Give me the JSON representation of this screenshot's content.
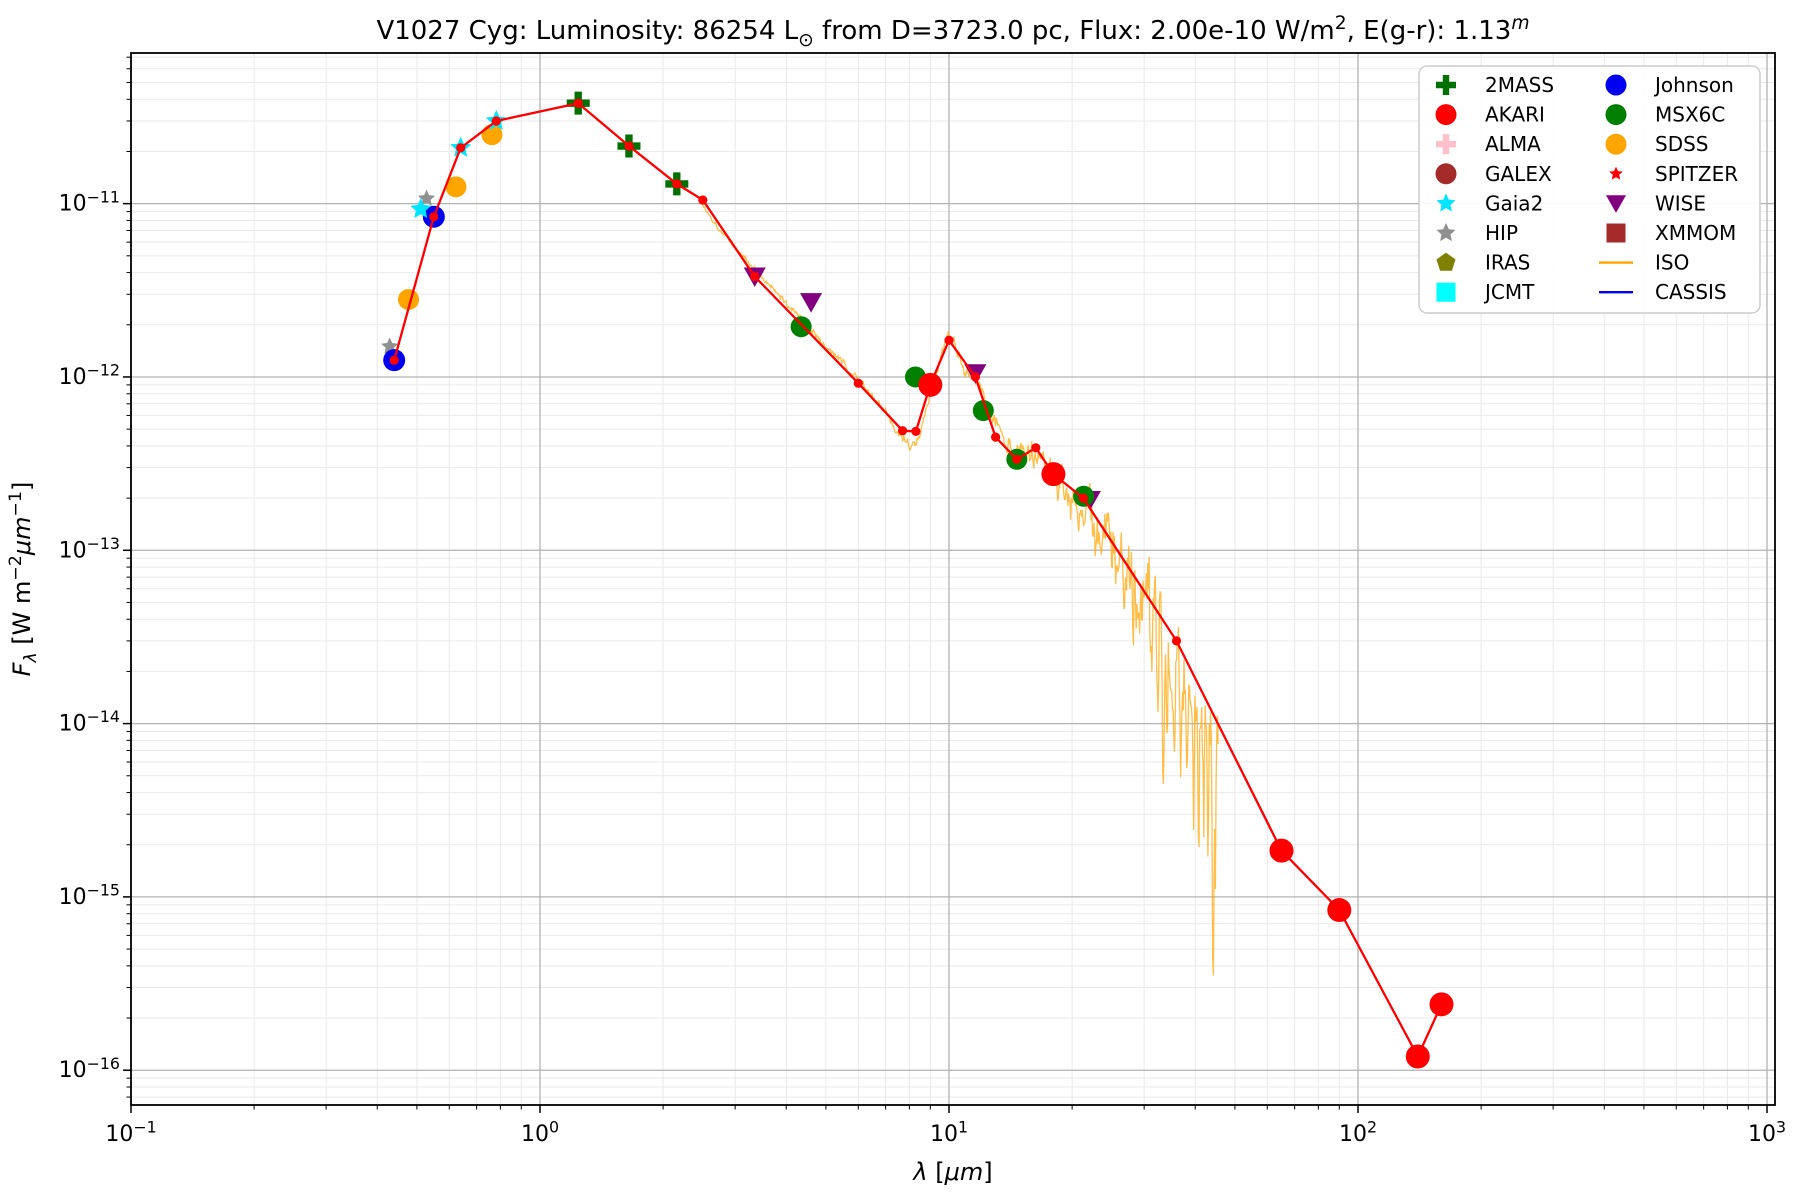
{
  "chart_data": {
    "type": "scatter",
    "title": "V1027 Cyg:  Luminosity: 86254 L⊙ from D=3723.0 pc, Flux: 2.00e-10 W/m2, E(g-r): 1.13m",
    "title_segments": [
      {
        "t": "V1027 Cyg:  Luminosity: 86254 L"
      },
      {
        "t": "⊙",
        "sub": 1
      },
      {
        "t": " from D=3723.0 pc, Flux: 2.00e-10 W/m"
      },
      {
        "t": "2",
        "sup": 1
      },
      {
        "t": ", E(g-r): 1.13"
      },
      {
        "t": "m",
        "sup": 1,
        "italic": 1
      }
    ],
    "xlabel": "λ [μm]",
    "xlabel_segments": [
      {
        "t": "λ",
        "italic": 1
      },
      {
        "t": " ["
      },
      {
        "t": "μm",
        "italic": 1
      },
      {
        "t": "]"
      }
    ],
    "ylabel": "Fλ [W m−2μm−1]",
    "ylabel_segments": [
      {
        "t": "F",
        "italic": 1
      },
      {
        "t": "λ",
        "sub": 1,
        "italic": 1
      },
      {
        "t": " [W m",
        "italic": 0
      },
      {
        "t": "−2",
        "sup": 1
      },
      {
        "t": "μm",
        "italic": 1
      },
      {
        "t": "−1",
        "sup": 1
      },
      {
        "t": "]"
      }
    ],
    "xscale": "log",
    "yscale": "log",
    "xlim": [
      0.1,
      1046
    ],
    "ylim": [
      6.3e-17,
      7.4e-11
    ],
    "x_tick_exponents": [
      -1,
      0,
      1,
      2,
      3
    ],
    "y_tick_exponents": [
      -11,
      -12,
      -13,
      -14,
      -15,
      -16
    ],
    "grid": true,
    "legend_position": "upper right",
    "colors": {
      "model_line": "#ff0000",
      "iso_line": "#ffa500",
      "grid_major": "#b3b3b3",
      "grid_minor": "#e9e9e9",
      "spine": "#000000"
    },
    "series": [
      {
        "name": "HIP",
        "marker": "star",
        "color": "#909090",
        "points": [
          [
            0.429,
            1.5e-12
          ],
          [
            0.528,
            1.07e-11
          ]
        ]
      },
      {
        "name": "Johnson",
        "marker": "circle",
        "color": "#0000ee",
        "points": [
          [
            0.44,
            1.25e-12
          ],
          [
            0.55,
            8.4e-12
          ]
        ]
      },
      {
        "name": "SDSS",
        "marker": "circle",
        "color": "#ffa500",
        "points": [
          [
            0.477,
            2.8e-12
          ],
          [
            0.623,
            1.25e-11
          ],
          [
            0.763,
            2.5e-11
          ]
        ]
      },
      {
        "name": "Gaia2",
        "marker": "star",
        "color": "#00e5ff",
        "points": [
          [
            0.511,
            9.3e-12
          ],
          [
            0.64,
            2.1e-11
          ],
          [
            0.782,
            3e-11
          ]
        ]
      },
      {
        "name": "2MASS",
        "marker": "plus",
        "color": "#007000",
        "points": [
          [
            1.24,
            3.8e-11
          ],
          [
            1.65,
            2.15e-11
          ],
          [
            2.16,
            1.3e-11
          ]
        ]
      },
      {
        "name": "WISE",
        "marker": "triangle-down",
        "color": "#800080",
        "points": [
          [
            3.35,
            3.8e-12
          ],
          [
            4.6,
            2.7e-12
          ],
          [
            11.6,
            1.05e-12
          ],
          [
            22.1,
            1.95e-13
          ]
        ]
      },
      {
        "name": "MSX6C",
        "marker": "circle",
        "color": "#008000",
        "points": [
          [
            4.35,
            1.95e-12
          ],
          [
            8.28,
            1e-12
          ],
          [
            12.13,
            6.4e-13
          ],
          [
            14.65,
            3.35e-13
          ],
          [
            21.34,
            2.05e-13
          ]
        ]
      },
      {
        "name": "AKARI",
        "marker": "circle",
        "color": "#ff0000",
        "points": [
          [
            9.0,
            9e-13
          ],
          [
            18.0,
            2.75e-13
          ],
          [
            65,
            1.85e-15
          ],
          [
            90,
            8.4e-16
          ],
          [
            140,
            1.2e-16
          ],
          [
            160,
            2.4e-16
          ]
        ]
      }
    ],
    "model_line": {
      "color": "#ff0000",
      "points": [
        [
          0.44,
          1.25e-12
        ],
        [
          0.55,
          8.4e-12
        ],
        [
          0.64,
          2.1e-11
        ],
        [
          0.782,
          3e-11
        ],
        [
          1.24,
          3.8e-11
        ],
        [
          1.65,
          2.15e-11
        ],
        [
          2.16,
          1.3e-11
        ],
        [
          2.5,
          1.05e-11
        ],
        [
          3.35,
          3.8e-12
        ],
        [
          6.0,
          9.2e-13
        ],
        [
          7.7,
          4.9e-13
        ],
        [
          8.3,
          4.85e-13
        ],
        [
          9.0,
          9e-13
        ],
        [
          10.0,
          1.63e-12
        ],
        [
          11.6,
          1e-12
        ],
        [
          13.0,
          4.5e-13
        ],
        [
          14.65,
          3.35e-13
        ],
        [
          16.3,
          3.9e-13
        ],
        [
          18.0,
          2.75e-13
        ],
        [
          21.3,
          2e-13
        ],
        [
          36.0,
          3e-14
        ],
        [
          65,
          1.85e-15
        ],
        [
          90,
          8.4e-16
        ],
        [
          140,
          1.2e-16
        ],
        [
          160,
          2.4e-16
        ]
      ]
    },
    "iso_spectrum": {
      "color": "#ffa500",
      "range_um": [
        2.45,
        45.5
      ],
      "baseline": [
        [
          2.45,
          1.05e-11
        ],
        [
          2.7,
          7.5e-12
        ],
        [
          3.0,
          5.6e-12
        ],
        [
          3.35,
          4.2e-12
        ],
        [
          3.8,
          3e-12
        ],
        [
          4.35,
          2.2e-12
        ],
        [
          5.0,
          1.5e-12
        ],
        [
          5.6,
          1.15e-12
        ],
        [
          6.2,
          8.8e-13
        ],
        [
          7.0,
          6.2e-13
        ],
        [
          7.6,
          4.6e-13
        ],
        [
          8.0,
          4e-13
        ],
        [
          8.5,
          4.6e-13
        ],
        [
          9.0,
          7.5e-13
        ],
        [
          9.5,
          1.3e-12
        ],
        [
          9.9,
          1.7e-12
        ],
        [
          10.3,
          1.5e-12
        ],
        [
          10.8,
          1.15e-12
        ],
        [
          11.3,
          1.05e-12
        ],
        [
          11.8,
          9e-13
        ],
        [
          12.4,
          6.8e-13
        ],
        [
          13.2,
          5e-13
        ],
        [
          14.0,
          4e-13
        ],
        [
          14.8,
          3.5e-13
        ],
        [
          15.8,
          4.1e-13
        ],
        [
          16.6,
          3.8e-13
        ],
        [
          17.6,
          2.9e-13
        ],
        [
          19.0,
          2.3e-13
        ],
        [
          20.5,
          1.85e-13
        ],
        [
          22.0,
          1.5e-13
        ],
        [
          24.0,
          1.15e-13
        ],
        [
          26.0,
          9e-14
        ],
        [
          28.0,
          8e-14
        ],
        [
          30.0,
          6.2e-14
        ],
        [
          32.0,
          4.6e-14
        ],
        [
          34.0,
          3.2e-14
        ],
        [
          36.0,
          2.5e-14
        ],
        [
          38.0,
          1.9e-14
        ],
        [
          40.0,
          1.5e-14
        ],
        [
          42.0,
          1.25e-14
        ],
        [
          44.0,
          1.05e-14
        ],
        [
          45.5,
          9e-15
        ]
      ],
      "down_spikes": [
        [
          25.5,
          0.22
        ],
        [
          26.8,
          0.3
        ],
        [
          28.2,
          0.35
        ],
        [
          29.6,
          0.3
        ],
        [
          31.2,
          0.45
        ],
        [
          32.4,
          0.5
        ],
        [
          33.4,
          0.75
        ],
        [
          34.2,
          0.6
        ],
        [
          35.5,
          0.45
        ],
        [
          36.8,
          0.5
        ],
        [
          38.2,
          0.55
        ],
        [
          39.6,
          0.5
        ],
        [
          40.8,
          0.65
        ],
        [
          42.0,
          0.55
        ],
        [
          43.0,
          0.7
        ],
        [
          44.2,
          1.5
        ],
        [
          44.8,
          0.8
        ]
      ]
    },
    "legend": [
      {
        "label": "2MASS",
        "marker": "plus",
        "color": "#007000"
      },
      {
        "label": "AKARI",
        "marker": "circle",
        "color": "#ff0000"
      },
      {
        "label": "ALMA",
        "marker": "plus",
        "color": "#ffc0cb"
      },
      {
        "label": "GALEX",
        "marker": "circle",
        "color": "#a52a2a"
      },
      {
        "label": "Gaia2",
        "marker": "star",
        "color": "#00e5ff"
      },
      {
        "label": "HIP",
        "marker": "star",
        "color": "#909090"
      },
      {
        "label": "IRAS",
        "marker": "pentagon",
        "color": "#808000"
      },
      {
        "label": "JCMT",
        "marker": "square",
        "color": "#00ffff"
      },
      {
        "label": "Johnson",
        "marker": "circle",
        "color": "#0000ee"
      },
      {
        "label": "MSX6C",
        "marker": "circle",
        "color": "#008000"
      },
      {
        "label": "SDSS",
        "marker": "circle",
        "color": "#ffa500"
      },
      {
        "label": "SPITZER",
        "marker": "star-small",
        "color": "#ff0000"
      },
      {
        "label": "WISE",
        "marker": "triangle-down",
        "color": "#800080"
      },
      {
        "label": "XMMOM",
        "marker": "square",
        "color": "#a52a2a"
      },
      {
        "label": "ISO",
        "marker": "line",
        "color": "#ffa500"
      },
      {
        "label": "CASSIS",
        "marker": "line",
        "color": "#0000ff"
      }
    ]
  }
}
